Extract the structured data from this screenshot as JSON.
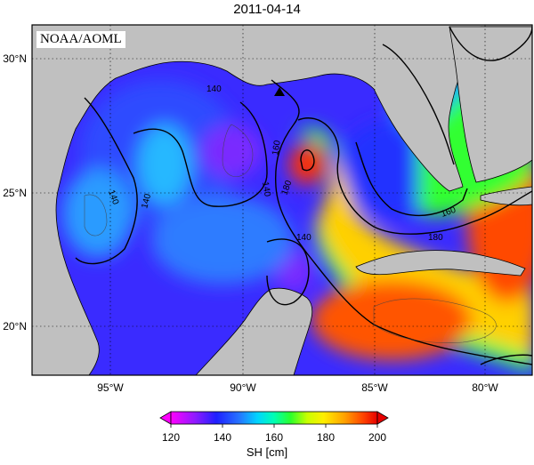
{
  "map": {
    "title": "2011-04-14",
    "source_label": "NOAA/AOML",
    "region": "Gulf of Mexico",
    "variable": "Sea surface height",
    "lat_ticks": [
      "30°N",
      "25°N",
      "20°N"
    ],
    "lon_ticks": [
      "95°W",
      "90°W",
      "85°W",
      "80°W"
    ],
    "contour_labels": [
      "140",
      "140",
      "140",
      "140",
      "160",
      "140",
      "180",
      "160",
      "180"
    ],
    "marker": "triangle",
    "colors": {
      "land": "#c0c0c0",
      "ocean_low": "#3a1dff",
      "ocean_high": "#ff2a00",
      "outline": "#000000"
    }
  },
  "colorbar": {
    "title": "SH [cm]",
    "ticks": [
      "120",
      "140",
      "160",
      "180",
      "200"
    ],
    "min": 120,
    "max": 200,
    "colors": [
      "#ff00ff",
      "#8c1aff",
      "#1f1fff",
      "#2673ff",
      "#00d5ff",
      "#00ffb3",
      "#2bff2b",
      "#c8ff00",
      "#ffee00",
      "#ffa200",
      "#ff4500",
      "#e60000"
    ]
  }
}
